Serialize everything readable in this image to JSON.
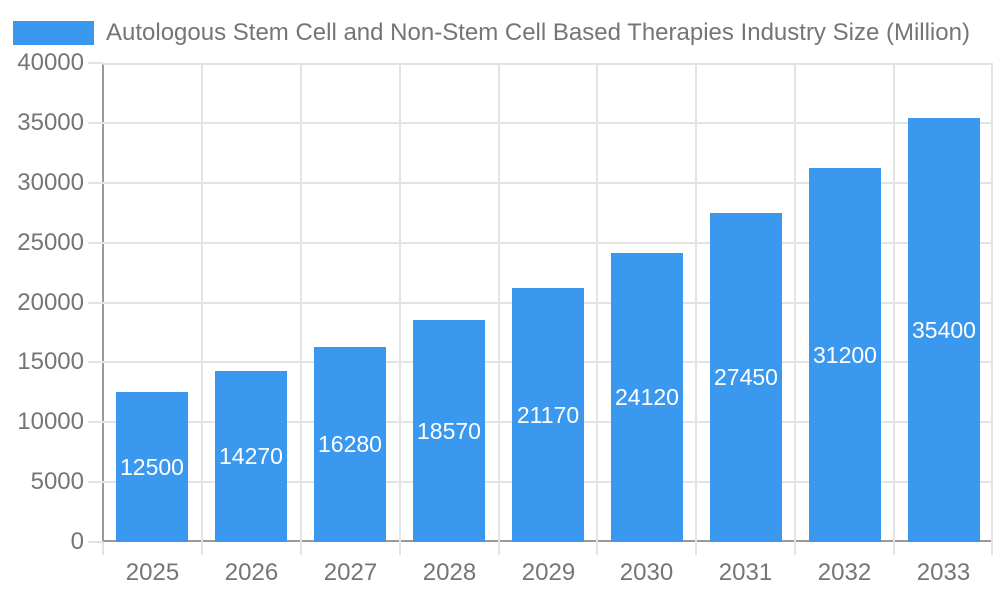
{
  "chart_data": {
    "type": "bar",
    "title": "Autologous Stem Cell and Non-Stem Cell Based Therapies Industry Size (Million)",
    "categories": [
      "2025",
      "2026",
      "2027",
      "2028",
      "2029",
      "2030",
      "2031",
      "2032",
      "2033"
    ],
    "values": [
      12500,
      14270,
      16280,
      18570,
      21170,
      24120,
      27450,
      31200,
      35400
    ],
    "series": [
      {
        "name": "Autologous Stem Cell and Non-Stem Cell Based Therapies Industry Size (Million)",
        "values": [
          12500,
          14270,
          16280,
          18570,
          21170,
          24120,
          27450,
          31200,
          35400
        ]
      }
    ],
    "xlabel": "",
    "ylabel": "",
    "ylim": [
      0,
      40000
    ],
    "ytick_step": 5000,
    "ytick_labels": [
      "0",
      "5000",
      "10000",
      "15000",
      "20000",
      "25000",
      "30000",
      "35000",
      "40000"
    ],
    "grid": "on",
    "legend_position": "top-left",
    "value_labels": "inside-center",
    "bar_color": "#3a99ef",
    "value_label_color": "#ffffff",
    "axis_text_color": "#757575",
    "grid_color": "#e3e3e3",
    "axis_line_color": "#9a9a9a"
  }
}
